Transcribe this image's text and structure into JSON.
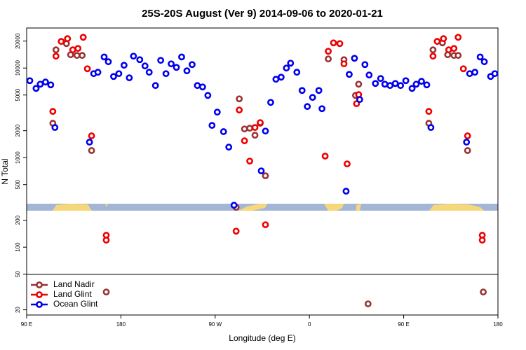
{
  "chart_data": {
    "type": "scatter",
    "title": "25S-20S August (Ver 9)   2014-09-06 to 2020-01-21",
    "x_label": "Longitude (deg E)",
    "y_label": "N Total",
    "log_y": true,
    "grid": false,
    "legend": "lower left",
    "xlim": [
      90,
      540
    ],
    "xticks": [
      {
        "value": 90,
        "label": "90 E"
      },
      180,
      {
        "value": 270,
        "label": "90 W"
      },
      {
        "value": 360,
        "label": "0"
      },
      {
        "value": 450,
        "label": "90 E"
      },
      {
        "value": 540,
        "label": "180"
      }
    ],
    "ylim": [
      17.5,
      28000
    ],
    "yticks": [
      20,
      50,
      100,
      200,
      500,
      1000,
      2000,
      5000,
      10000,
      20000
    ],
    "series": [
      {
        "name": "Land Nadir",
        "color": "#993333",
        "x": [
          115,
          118,
          128,
          132,
          138,
          143,
          152,
          166,
          290,
          293,
          298,
          303,
          308,
          313,
          318,
          378,
          393,
          404,
          407,
          416,
          474,
          478,
          487,
          492,
          498,
          502,
          511,
          526
        ],
        "values": [
          2420,
          15970,
          18750,
          14080,
          13830,
          13830,
          1200,
          31.6,
          279,
          4530,
          2090,
          2130,
          1780,
          2420,
          627,
          12640,
          12400,
          4950,
          6610,
          23.3,
          2420,
          15970,
          19110,
          14080,
          13830,
          13830,
          1200,
          31.6
        ]
      },
      {
        "name": "Land Glint",
        "color": "#ee0000",
        "x": [
          115,
          118,
          123,
          129,
          134,
          139,
          144,
          148,
          152,
          166,
          166,
          290,
          293,
          298,
          303,
          308,
          313,
          318,
          375,
          378,
          383,
          389,
          393,
          396,
          405,
          407,
          474,
          478,
          482,
          488,
          493,
          498,
          502,
          507,
          511,
          525,
          525
        ],
        "values": [
          3280,
          13580,
          19820,
          21300,
          15970,
          16550,
          22060,
          9820,
          1750,
          136,
          120,
          151,
          3400,
          1540,
          914,
          2170,
          2460,
          178,
          1040,
          15400,
          19110,
          18750,
          11140,
          851,
          4000,
          5050,
          3280,
          13580,
          19820,
          21300,
          15970,
          16550,
          22060,
          9820,
          1750,
          136,
          120
        ]
      },
      {
        "name": "Ocean Glint",
        "color": "#0000ee",
        "x": [
          93,
          99,
          103,
          108,
          113,
          117,
          150,
          154,
          158,
          164,
          168,
          173,
          178,
          183,
          188,
          192,
          198,
          203,
          207,
          213,
          218,
          223,
          228,
          233,
          238,
          243,
          248,
          253,
          258,
          263,
          267,
          272,
          278,
          283,
          288,
          314,
          318,
          323,
          328,
          333,
          338,
          342,
          348,
          353,
          358,
          363,
          369,
          372,
          395,
          398,
          403,
          408,
          413,
          417,
          423,
          428,
          432,
          437,
          442,
          447,
          452,
          458,
          462,
          467,
          472,
          476,
          510,
          513,
          518,
          523,
          527,
          533,
          537
        ],
        "values": [
          7230,
          5930,
          6610,
          6980,
          6490,
          2170,
          1490,
          8660,
          8980,
          13300,
          11760,
          8050,
          8660,
          10750,
          7780,
          13580,
          12400,
          10560,
          8980,
          6380,
          12190,
          8660,
          11140,
          10180,
          13300,
          9310,
          10940,
          6380,
          6150,
          4950,
          2290,
          3220,
          1950,
          1310,
          294,
          711,
          1980,
          4140,
          7500,
          7910,
          10000,
          11340,
          8980,
          5620,
          3720,
          4700,
          5620,
          3520,
          422,
          8500,
          12860,
          4450,
          10940,
          8360,
          6730,
          7640,
          6610,
          6380,
          6730,
          6380,
          7230,
          5930,
          6610,
          7110,
          6490,
          2170,
          1490,
          8660,
          8980,
          13300,
          11760,
          8050,
          8660
        ]
      }
    ]
  }
}
